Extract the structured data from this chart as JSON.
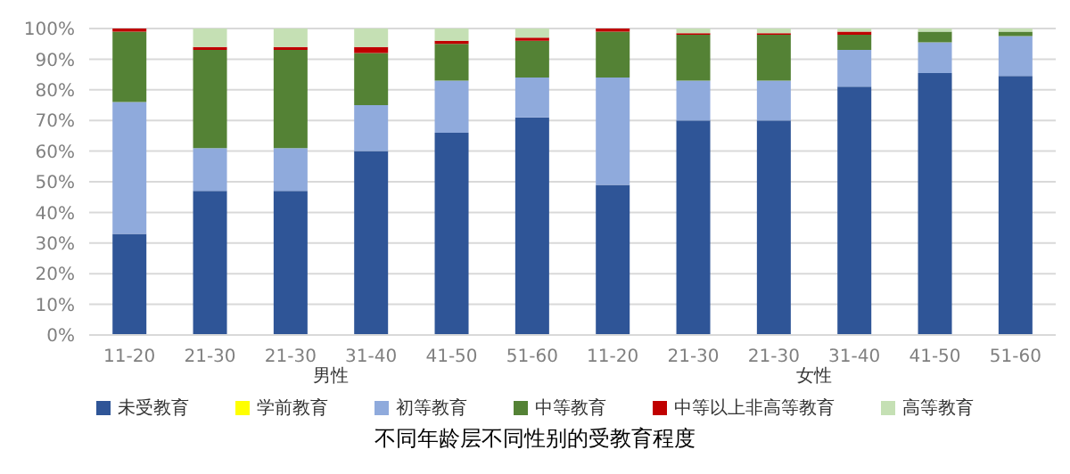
{
  "chart_data": {
    "type": "bar",
    "title": "不同年龄层不同性别的受教育程度",
    "stacked": true,
    "categories": [
      "11-20",
      "21-30",
      "21-30",
      "31-40",
      "41-50",
      "51-60",
      "11-20",
      "21-30",
      "21-30",
      "31-40",
      "41-50",
      "51-60"
    ],
    "annotations": [
      "男性",
      "女性"
    ],
    "series": [
      {
        "name": "未受教育",
        "color": "#2f5597",
        "values": [
          33,
          47,
          47,
          60,
          66,
          71,
          49,
          70,
          70,
          81,
          85.5,
          84.5
        ]
      },
      {
        "name": "学前教育",
        "color": "#ffff00",
        "values": [
          0,
          0,
          0,
          0,
          0,
          0,
          0,
          0,
          0,
          0,
          0,
          0
        ]
      },
      {
        "name": "初等教育",
        "color": "#8faadc",
        "values": [
          43,
          14,
          14,
          15,
          17,
          13,
          35,
          13,
          13,
          12,
          10,
          13
        ]
      },
      {
        "name": "中等教育",
        "color": "#548235",
        "values": [
          23,
          32,
          32,
          17,
          12,
          12,
          15,
          15,
          15,
          5,
          3.5,
          1.5
        ]
      },
      {
        "name": "中等以上非高等教育",
        "color": "#c00000",
        "values": [
          1,
          1,
          1,
          2,
          1,
          1,
          1,
          0.5,
          0.5,
          1,
          0,
          0
        ]
      },
      {
        "name": "高等教育",
        "color": "#c5e0b4",
        "values": [
          0,
          6,
          6,
          6,
          4,
          3,
          0,
          1.5,
          1.5,
          1,
          1,
          1
        ]
      }
    ],
    "ylim": [
      0,
      100
    ],
    "yticks": [
      {
        "value": 0,
        "label": "0%"
      },
      {
        "value": 10,
        "label": "10%"
      },
      {
        "value": 20,
        "label": "20%"
      },
      {
        "value": 30,
        "label": "30%"
      },
      {
        "value": 40,
        "label": "40%"
      },
      {
        "value": 50,
        "label": "50%"
      },
      {
        "value": 60,
        "label": "60%"
      },
      {
        "value": 70,
        "label": "70%"
      },
      {
        "value": 80,
        "label": "80%"
      },
      {
        "value": 90,
        "label": "90%"
      },
      {
        "value": 100,
        "label": "100%"
      }
    ],
    "grid": "y",
    "legend": "bottom"
  }
}
